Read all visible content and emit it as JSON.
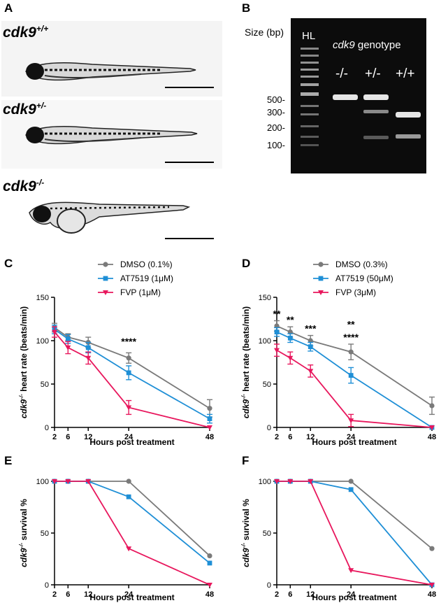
{
  "panel_letters": [
    "A",
    "B",
    "C",
    "D",
    "E",
    "F"
  ],
  "colors": {
    "dmso": "#7a7a7a",
    "at7519": "#1f8fd6",
    "fvp": "#e8175d",
    "gel_bg": "#0c0c0c",
    "band": "#e6e6e6"
  },
  "panelA": {
    "fish": [
      {
        "label": "cdk9",
        "sup": "+/+"
      },
      {
        "label": "cdk9",
        "sup": "+/-"
      },
      {
        "label": "cdk9",
        "sup": "-/-"
      }
    ]
  },
  "panelB": {
    "size_title": "Size (bp)",
    "ladder_label": "HL",
    "genotype_gene": "cdk9",
    "genotype_word": "genotype",
    "lanes": [
      "-/-",
      "+/-",
      "+/+"
    ],
    "sizes": [
      "500-",
      "300-",
      "200-",
      "100-"
    ]
  },
  "chart_data": [
    {
      "panel": "C",
      "type": "line",
      "xlabel": "Hours post treatment",
      "ylabel_gene": "cdk9",
      "ylabel_sup": "-/-",
      "ylabel_rest": " heart rate (beats/min)",
      "x": [
        2,
        6,
        12,
        24,
        48
      ],
      "xticks": [
        "2",
        "6",
        "12",
        "24",
        "48"
      ],
      "yticks": [
        0,
        50,
        100,
        150
      ],
      "ylim": [
        0,
        150
      ],
      "legend": [
        "DMSO (0.1%)",
        "AT7519 (1μM)",
        "FVP (1μM)"
      ],
      "series": [
        {
          "name": "DMSO (0.1%)",
          "key": "dmso",
          "values": [
            115,
            104,
            98,
            80,
            22
          ],
          "err": [
            5,
            4,
            6,
            6,
            10
          ]
        },
        {
          "name": "AT7519 (1μM)",
          "key": "at7519",
          "values": [
            113,
            102,
            92,
            63,
            10
          ],
          "err": [
            5,
            5,
            6,
            8,
            5
          ]
        },
        {
          "name": "FVP (1μM)",
          "key": "fvp",
          "values": [
            110,
            92,
            80,
            23,
            0
          ],
          "err": [
            6,
            7,
            7,
            8,
            0
          ]
        }
      ],
      "annotations": [
        {
          "x": 24,
          "y": 95,
          "text": "****"
        }
      ]
    },
    {
      "panel": "D",
      "type": "line",
      "xlabel": "Hours post treatment",
      "ylabel_gene": "cdk9",
      "ylabel_sup": "-/-",
      "ylabel_rest": " heart rate (beats/min)",
      "x": [
        2,
        6,
        12,
        24,
        48
      ],
      "xticks": [
        "2",
        "6",
        "12",
        "24",
        "48"
      ],
      "yticks": [
        0,
        50,
        100,
        150
      ],
      "ylim": [
        0,
        150
      ],
      "legend": [
        "DMSO (0.3%)",
        "AT7519 (50μM)",
        "FVP (3μM)"
      ],
      "series": [
        {
          "name": "DMSO (0.3%)",
          "key": "dmso",
          "values": [
            117,
            110,
            100,
            87,
            25
          ],
          "err": [
            6,
            6,
            6,
            9,
            10
          ]
        },
        {
          "name": "AT7519 (50μM)",
          "key": "at7519",
          "values": [
            110,
            103,
            93,
            60,
            0
          ],
          "err": [
            5,
            5,
            5,
            9,
            0
          ]
        },
        {
          "name": "FVP (3μM)",
          "key": "fvp",
          "values": [
            89,
            80,
            65,
            8,
            0
          ],
          "err": [
            7,
            7,
            7,
            7,
            0
          ]
        }
      ],
      "annotations": [
        {
          "x": 2,
          "y": 127,
          "text": "**"
        },
        {
          "x": 6,
          "y": 120,
          "text": "**"
        },
        {
          "x": 12,
          "y": 110,
          "text": "***"
        },
        {
          "x": 24,
          "y": 115,
          "text": "**"
        },
        {
          "x": 24,
          "y": 100,
          "text": "****"
        }
      ]
    },
    {
      "panel": "E",
      "type": "line",
      "xlabel": "Hours post treatment",
      "ylabel_gene": "cdk9",
      "ylabel_sup": "-/-",
      "ylabel_rest": " survival %",
      "x": [
        2,
        6,
        12,
        24,
        48
      ],
      "xticks": [
        "2",
        "6",
        "12",
        "24",
        "48"
      ],
      "yticks": [
        0,
        50,
        100
      ],
      "ylim": [
        0,
        100
      ],
      "series": [
        {
          "name": "DMSO",
          "key": "dmso",
          "values": [
            100,
            100,
            100,
            100,
            28
          ]
        },
        {
          "name": "AT7519",
          "key": "at7519",
          "values": [
            100,
            100,
            100,
            85,
            21
          ]
        },
        {
          "name": "FVP",
          "key": "fvp",
          "values": [
            100,
            100,
            100,
            35,
            0
          ]
        }
      ]
    },
    {
      "panel": "F",
      "type": "line",
      "xlabel": "Hours post treatment",
      "ylabel_gene": "cdk9",
      "ylabel_sup": "-/-",
      "ylabel_rest": " survival %",
      "x": [
        2,
        6,
        12,
        24,
        48
      ],
      "xticks": [
        "2",
        "6",
        "12",
        "24",
        "48"
      ],
      "yticks": [
        0,
        50,
        100
      ],
      "ylim": [
        0,
        100
      ],
      "series": [
        {
          "name": "DMSO",
          "key": "dmso",
          "values": [
            100,
            100,
            100,
            100,
            35
          ]
        },
        {
          "name": "AT7519",
          "key": "at7519",
          "values": [
            100,
            100,
            100,
            92,
            0
          ]
        },
        {
          "name": "FVP",
          "key": "fvp",
          "values": [
            100,
            100,
            100,
            14,
            0
          ]
        }
      ]
    }
  ]
}
